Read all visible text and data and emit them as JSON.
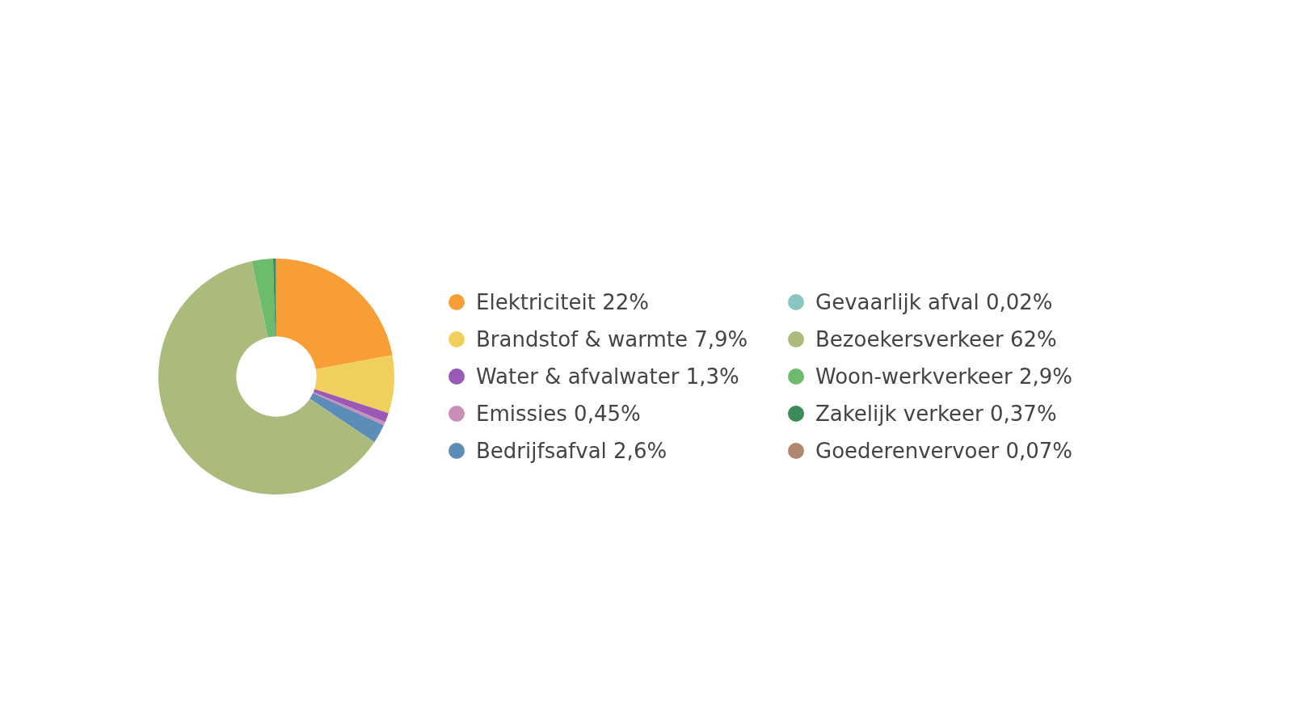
{
  "chart_data": {
    "type": "donut",
    "categories": [
      "Elektriciteit",
      "Brandstof & warmte",
      "Water & afvalwater",
      "Emissies",
      "Bedrijfsafval",
      "Gevaarlijk afval",
      "Bezoekersverkeer",
      "Woon-werkverkeer",
      "Zakelijk verkeer",
      "Goederenvervoer"
    ],
    "values": [
      22,
      7.9,
      1.3,
      0.45,
      2.6,
      0.02,
      62,
      2.9,
      0.37,
      0.07
    ],
    "value_labels": [
      "22%",
      "7,9%",
      "1,3%",
      "0,45%",
      "2,6%",
      "0,02%",
      "62%",
      "2,9%",
      "0,37%",
      "0,07%"
    ],
    "colors": [
      "#f79f36",
      "#f0d05c",
      "#9b59b6",
      "#c98fb9",
      "#5b8db8",
      "#88c5c3",
      "#abbb7c",
      "#6dbb6d",
      "#3c8c5a",
      "#b08770"
    ],
    "legend": "right"
  }
}
